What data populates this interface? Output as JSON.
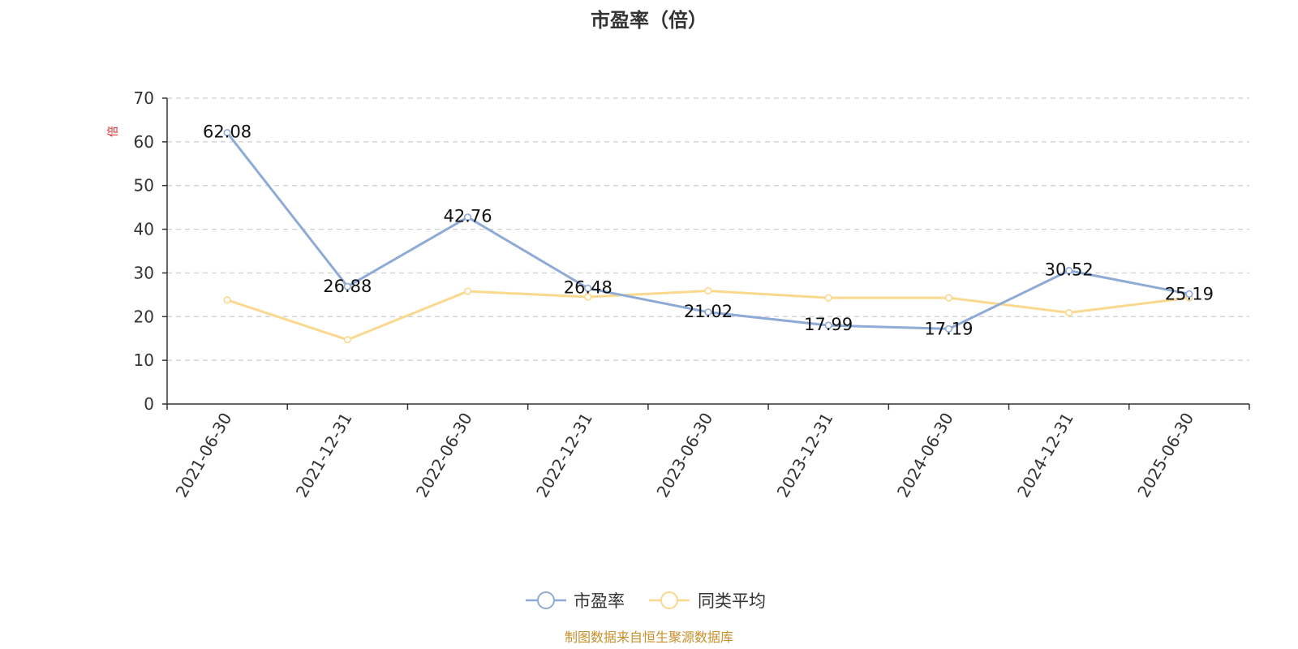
{
  "chart_data": {
    "type": "line",
    "title": "市盈率（倍）",
    "unit": "倍",
    "categories": [
      "2021-06-30",
      "2021-12-31",
      "2022-06-30",
      "2022-12-31",
      "2023-06-30",
      "2023-12-31",
      "2024-06-30",
      "2024-12-31",
      "2025-06-30"
    ],
    "y_ticks": [
      "0",
      "10",
      "20",
      "30",
      "40",
      "50",
      "60",
      "70"
    ],
    "ylim": [
      0,
      70
    ],
    "grid": true,
    "legend_position": "bottom",
    "series": [
      {
        "name": "市盈率",
        "color": "#8eaad6",
        "values": [
          62.08,
          26.88,
          42.76,
          26.48,
          21.02,
          17.99,
          17.19,
          30.52,
          25.19
        ],
        "labels": [
          "62.08",
          "26.88",
          "42.76",
          "26.48",
          "21.02",
          "17.99",
          "17.19",
          "30.52",
          "25.19"
        ]
      },
      {
        "name": "同类平均",
        "color": "#fad98f",
        "values": [
          23.8,
          14.7,
          25.8,
          24.5,
          25.9,
          24.3,
          24.3,
          20.9,
          24.3
        ]
      }
    ],
    "source": "制图数据来自恒生聚源数据库"
  }
}
